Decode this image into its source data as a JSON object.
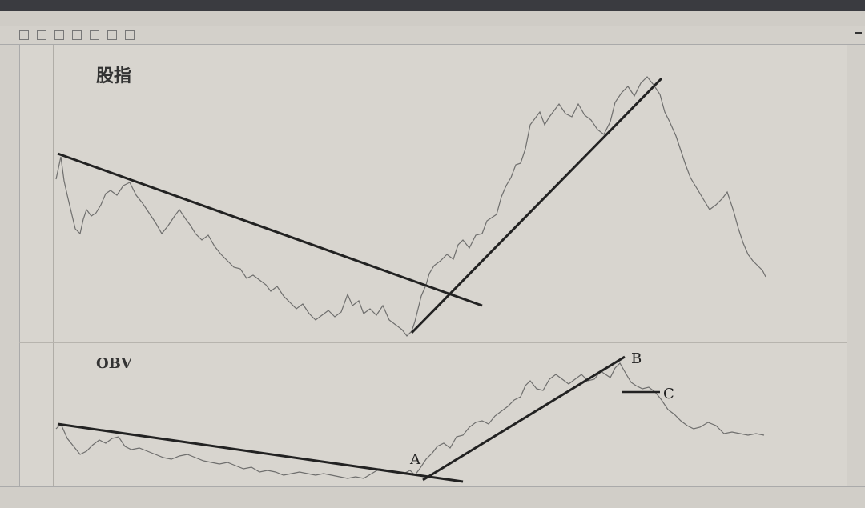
{
  "titlebar": {
    "text": ""
  },
  "menubar": {
    "items": []
  },
  "toolbar": {
    "right_tag": ""
  },
  "charts": {
    "top_label": "股指",
    "bottom_label": "OBV",
    "annotations": {
      "a": "A",
      "b": "B",
      "c": "C"
    }
  },
  "statusbar": {
    "text": ""
  }
}
